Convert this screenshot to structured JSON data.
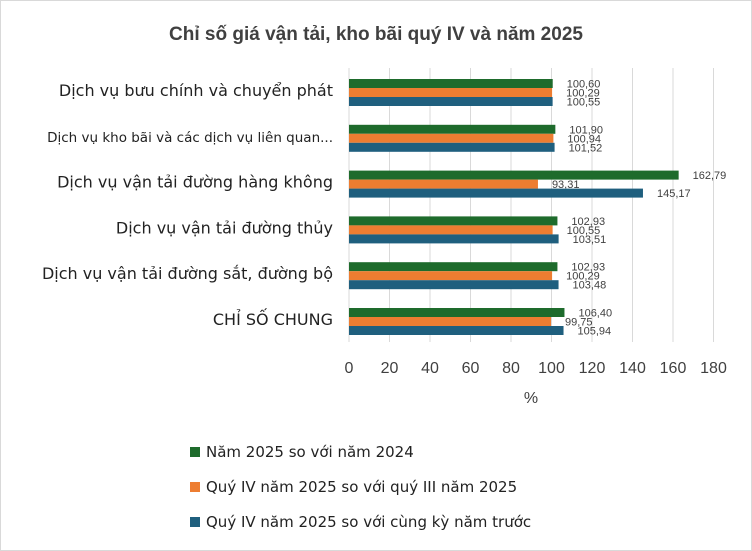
{
  "chart_data": {
    "type": "bar",
    "orientation": "horizontal",
    "title": "Chỉ số giá vận tải, kho bãi quý IV và năm 2025",
    "xlabel": "%",
    "ylabel": "",
    "xlim": [
      0,
      180
    ],
    "ticks": [
      "0",
      "20",
      "40",
      "60",
      "80",
      "100",
      "120",
      "140",
      "160",
      "180"
    ],
    "grid": true,
    "legend_position": "bottom",
    "categories": [
      "Dịch vụ bưu chính và chuyển phát",
      "Dịch vụ kho bãi và các dịch vụ liên quan...",
      "Dịch vụ vận tải đường hàng không",
      "Dịch vụ vận tải đường thủy",
      "Dịch vụ vận tải đường sắt, đường bộ",
      "CHỈ SỐ CHUNG"
    ],
    "series": [
      {
        "name": "Năm 2025 so với năm 2024",
        "color": "#1e6b2c",
        "values": [
          100.6,
          101.9,
          162.79,
          102.93,
          102.93,
          106.4
        ],
        "labels": [
          "100,60",
          "101,90",
          "162,79",
          "102,93",
          "102,93",
          "106,40"
        ]
      },
      {
        "name": "Quý IV năm 2025 so với quý III năm 2025",
        "color": "#ed7d31",
        "values": [
          100.29,
          100.94,
          93.31,
          100.55,
          100.29,
          99.75
        ],
        "labels": [
          "100,29",
          "100,94",
          "93,31",
          "100,55",
          "100,29",
          "99,75"
        ]
      },
      {
        "name": "Quý IV năm 2025 so với cùng kỳ năm trước",
        "color": "#1f5f7e",
        "values": [
          100.55,
          101.52,
          145.17,
          103.51,
          103.48,
          105.94
        ],
        "labels": [
          "100,55",
          "101,52",
          "145,17",
          "103,51",
          "103,48",
          "105,94"
        ]
      }
    ]
  }
}
